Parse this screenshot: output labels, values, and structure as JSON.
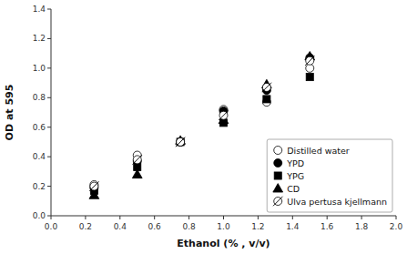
{
  "chart_data": {
    "type": "scatter",
    "title": "",
    "xlabel": "Ethanol (% , v/v)",
    "ylabel": "OD at 595",
    "xlim": [
      0.0,
      2.0
    ],
    "ylim": [
      0.0,
      1.4
    ],
    "xticks": [
      {
        "value": 0.0,
        "label": "0.0"
      },
      0.2,
      0.4,
      0.6,
      0.8,
      {
        "value": 1.0,
        "label": "1.0"
      },
      1.2,
      1.4,
      1.6,
      1.8,
      {
        "value": 2.0,
        "label": "2.0"
      }
    ],
    "yticks": [
      {
        "value": 0.0,
        "label": "0.0"
      },
      0.2,
      0.4,
      0.6,
      0.8,
      {
        "value": 1.0,
        "label": "1.0"
      },
      1.2,
      1.4
    ],
    "x": [
      0.25,
      0.5,
      0.75,
      1.0,
      1.25,
      1.5
    ],
    "series": [
      {
        "name": "Distilled water",
        "color": "white",
        "marker": "circle",
        "values": [
          0.21,
          0.41,
          0.5,
          0.72,
          0.77,
          1.0
        ]
      },
      {
        "name": "YPD",
        "color": "black",
        "marker": "circle",
        "values": [
          0.19,
          0.37,
          0.5,
          0.71,
          0.85,
          1.07
        ]
      },
      {
        "name": "YPG",
        "color": "black",
        "marker": "square",
        "values": [
          0.17,
          0.33,
          0.5,
          0.63,
          0.79,
          0.94
        ]
      },
      {
        "name": "CD",
        "color": "black",
        "marker": "triangle",
        "values": [
          0.14,
          0.28,
          0.51,
          0.65,
          0.89,
          1.08
        ]
      },
      {
        "name": "Ulva pertusa kjellmann",
        "color": "white",
        "marker": "slashed-circle",
        "values": [
          0.2,
          0.38,
          0.5,
          0.68,
          0.87,
          1.05
        ]
      }
    ],
    "grid": false,
    "legend": "lower right"
  }
}
